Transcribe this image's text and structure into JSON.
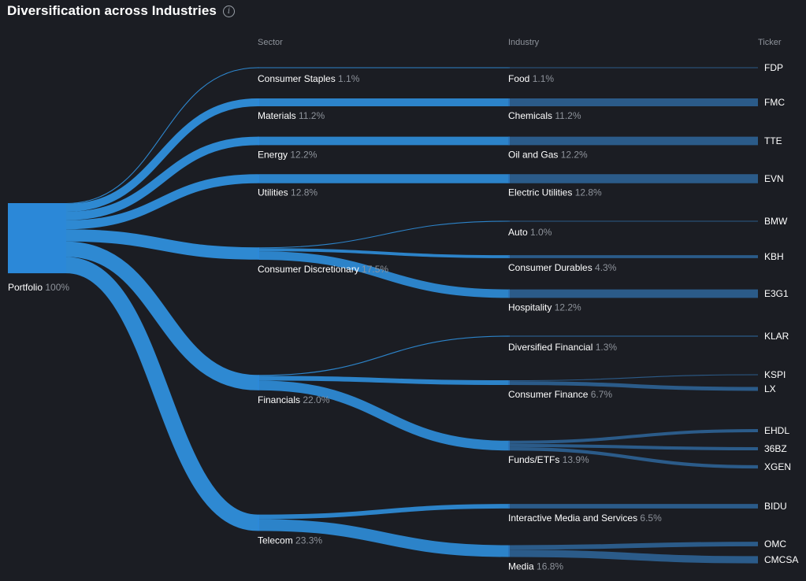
{
  "header": {
    "title": "Diversification across Industries",
    "info_icon": "info-icon"
  },
  "chart_data": {
    "type": "sankey",
    "title": "Diversification across Industries",
    "columns": [
      "Sector",
      "Industry",
      "Ticker"
    ],
    "root": {
      "name": "Portfolio",
      "pct_label": "100%",
      "value": 100
    },
    "colors": {
      "flow": "#2f8fdc",
      "bar_sector": "#2b88d8",
      "bar_industry": "#2a74bb",
      "bar_ticker": "#2c5f8f"
    },
    "sectors": [
      {
        "name": "Consumer Staples",
        "pct_label": "1.1%",
        "value": 1.1
      },
      {
        "name": "Materials",
        "pct_label": "11.2%",
        "value": 11.2
      },
      {
        "name": "Energy",
        "pct_label": "12.2%",
        "value": 12.2
      },
      {
        "name": "Utilities",
        "pct_label": "12.8%",
        "value": 12.8
      },
      {
        "name": "Consumer Discretionary",
        "pct_label": "17.5%",
        "value": 17.5
      },
      {
        "name": "Financials",
        "pct_label": "22.0%",
        "value": 22.0
      },
      {
        "name": "Telecom",
        "pct_label": "23.3%",
        "value": 23.3
      }
    ],
    "industries": [
      {
        "name": "Food",
        "pct_label": "1.1%",
        "value": 1.1,
        "sector": "Consumer Staples"
      },
      {
        "name": "Chemicals",
        "pct_label": "11.2%",
        "value": 11.2,
        "sector": "Materials"
      },
      {
        "name": "Oil and Gas",
        "pct_label": "12.2%",
        "value": 12.2,
        "sector": "Energy"
      },
      {
        "name": "Electric Utilities",
        "pct_label": "12.8%",
        "value": 12.8,
        "sector": "Utilities"
      },
      {
        "name": "Auto",
        "pct_label": "1.0%",
        "value": 1.0,
        "sector": "Consumer Discretionary"
      },
      {
        "name": "Consumer Durables",
        "pct_label": "4.3%",
        "value": 4.3,
        "sector": "Consumer Discretionary"
      },
      {
        "name": "Hospitality",
        "pct_label": "12.2%",
        "value": 12.2,
        "sector": "Consumer Discretionary"
      },
      {
        "name": "Diversified Financial",
        "pct_label": "1.3%",
        "value": 1.3,
        "sector": "Financials"
      },
      {
        "name": "Consumer Finance",
        "pct_label": "6.7%",
        "value": 6.7,
        "sector": "Financials"
      },
      {
        "name": "Funds/ETFs",
        "pct_label": "13.9%",
        "value": 13.9,
        "sector": "Financials"
      },
      {
        "name": "Interactive Media and Services",
        "pct_label": "6.5%",
        "value": 6.5,
        "sector": "Telecom"
      },
      {
        "name": "Media",
        "pct_label": "16.8%",
        "value": 16.8,
        "sector": "Telecom"
      }
    ],
    "tickers": [
      {
        "name": "FDP",
        "industry": "Food",
        "value": 1.1
      },
      {
        "name": "FMC",
        "industry": "Chemicals",
        "value": 11.2
      },
      {
        "name": "TTE",
        "industry": "Oil and Gas",
        "value": 12.2
      },
      {
        "name": "EVN",
        "industry": "Electric Utilities",
        "value": 12.8
      },
      {
        "name": "BMW",
        "industry": "Auto",
        "value": 1.0
      },
      {
        "name": "KBH",
        "industry": "Consumer Durables",
        "value": 4.3
      },
      {
        "name": "E3G1",
        "industry": "Hospitality",
        "value": 12.2
      },
      {
        "name": "KLAR",
        "industry": "Diversified Financial",
        "value": 1.3
      },
      {
        "name": "KSPI",
        "industry": "Consumer Finance",
        "value": 1.2
      },
      {
        "name": "LX",
        "industry": "Consumer Finance",
        "value": 5.5
      },
      {
        "name": "EHDL",
        "industry": "Funds/ETFs",
        "value": 4.5
      },
      {
        "name": "36BZ",
        "industry": "Funds/ETFs",
        "value": 4.6
      },
      {
        "name": "XGEN",
        "industry": "Funds/ETFs",
        "value": 4.8
      },
      {
        "name": "BIDU",
        "industry": "Interactive Media and Services",
        "value": 6.5
      },
      {
        "name": "OMC",
        "industry": "Media",
        "value": 6.5
      },
      {
        "name": "CMCSA",
        "industry": "Media",
        "value": 10.3
      }
    ]
  }
}
